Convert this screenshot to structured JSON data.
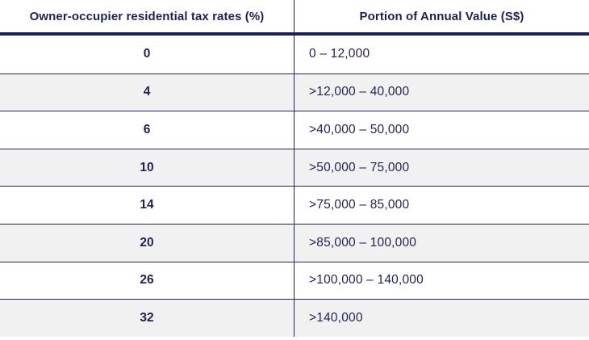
{
  "table": {
    "columns": [
      {
        "label": "Owner-occupier residential tax rates (%)"
      },
      {
        "label": "Portion of Annual Value (S$)"
      }
    ],
    "rows": [
      {
        "rate": "0",
        "range": "0 – 12,000"
      },
      {
        "rate": "4",
        "range": ">12,000 – 40,000"
      },
      {
        "rate": "6",
        "range": ">40,000 – 50,000"
      },
      {
        "rate": "10",
        "range": ">50,000 – 75,000"
      },
      {
        "rate": "14",
        "range": ">75,000 – 85,000"
      },
      {
        "rate": "20",
        "range": ">85,000 – 100,000"
      },
      {
        "rate": "26",
        "range": ">100,000 – 140,000"
      },
      {
        "rate": "32",
        "range": ">140,000"
      }
    ],
    "colors": {
      "text_navy": "#1e2253",
      "border_navy": "#242851",
      "header_rule_navy": "#1b2153",
      "row_alt_gray": "#f1f1f2",
      "row_white": "#ffffff"
    }
  },
  "chart_data": {
    "type": "table",
    "columns": [
      "Owner-occupier residential tax rates (%)",
      "Portion of Annual Value (S$)"
    ],
    "rows": [
      [
        "0",
        "0 – 12,000"
      ],
      [
        "4",
        ">12,000 – 40,000"
      ],
      [
        "6",
        ">40,000 – 50,000"
      ],
      [
        "10",
        ">50,000 – 75,000"
      ],
      [
        "14",
        ">75,000 – 85,000"
      ],
      [
        "20",
        ">85,000 – 100,000"
      ],
      [
        "26",
        ">100,000 – 140,000"
      ],
      [
        "32",
        ">140,000"
      ]
    ]
  }
}
